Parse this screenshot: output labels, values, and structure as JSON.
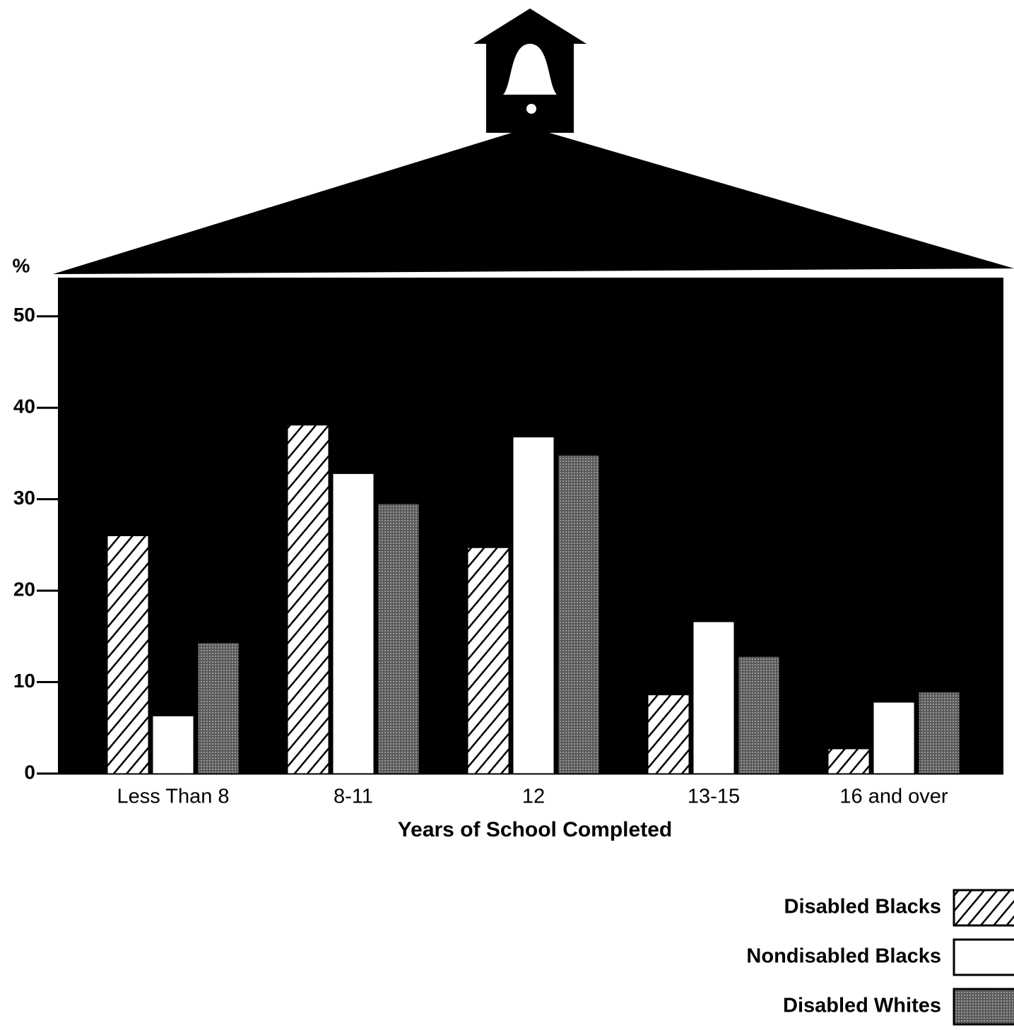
{
  "chart_data": {
    "type": "bar",
    "ylabel": "%",
    "xlabel": "Years of School Completed",
    "categories": [
      "Less Than 8",
      "8-11",
      "12",
      "13-15",
      "16 and over"
    ],
    "series": [
      {
        "name": "Disabled Blacks",
        "color": "#ffffff",
        "pattern": "hatch",
        "values": [
          26.0,
          38.1,
          24.7,
          8.6,
          2.7
        ]
      },
      {
        "name": "Nondisabled Blacks",
        "color": "#ffffff",
        "pattern": "solid",
        "values": [
          6.3,
          32.8,
          36.8,
          16.6,
          7.8
        ]
      },
      {
        "name": "Disabled Whites",
        "color": "#808080",
        "pattern": "dots",
        "values": [
          14.3,
          29.5,
          34.8,
          12.8,
          8.9
        ]
      }
    ],
    "ylim": [
      0,
      54
    ],
    "yticks": [
      0,
      10,
      20,
      30,
      40,
      50
    ],
    "legend": "lower right"
  }
}
